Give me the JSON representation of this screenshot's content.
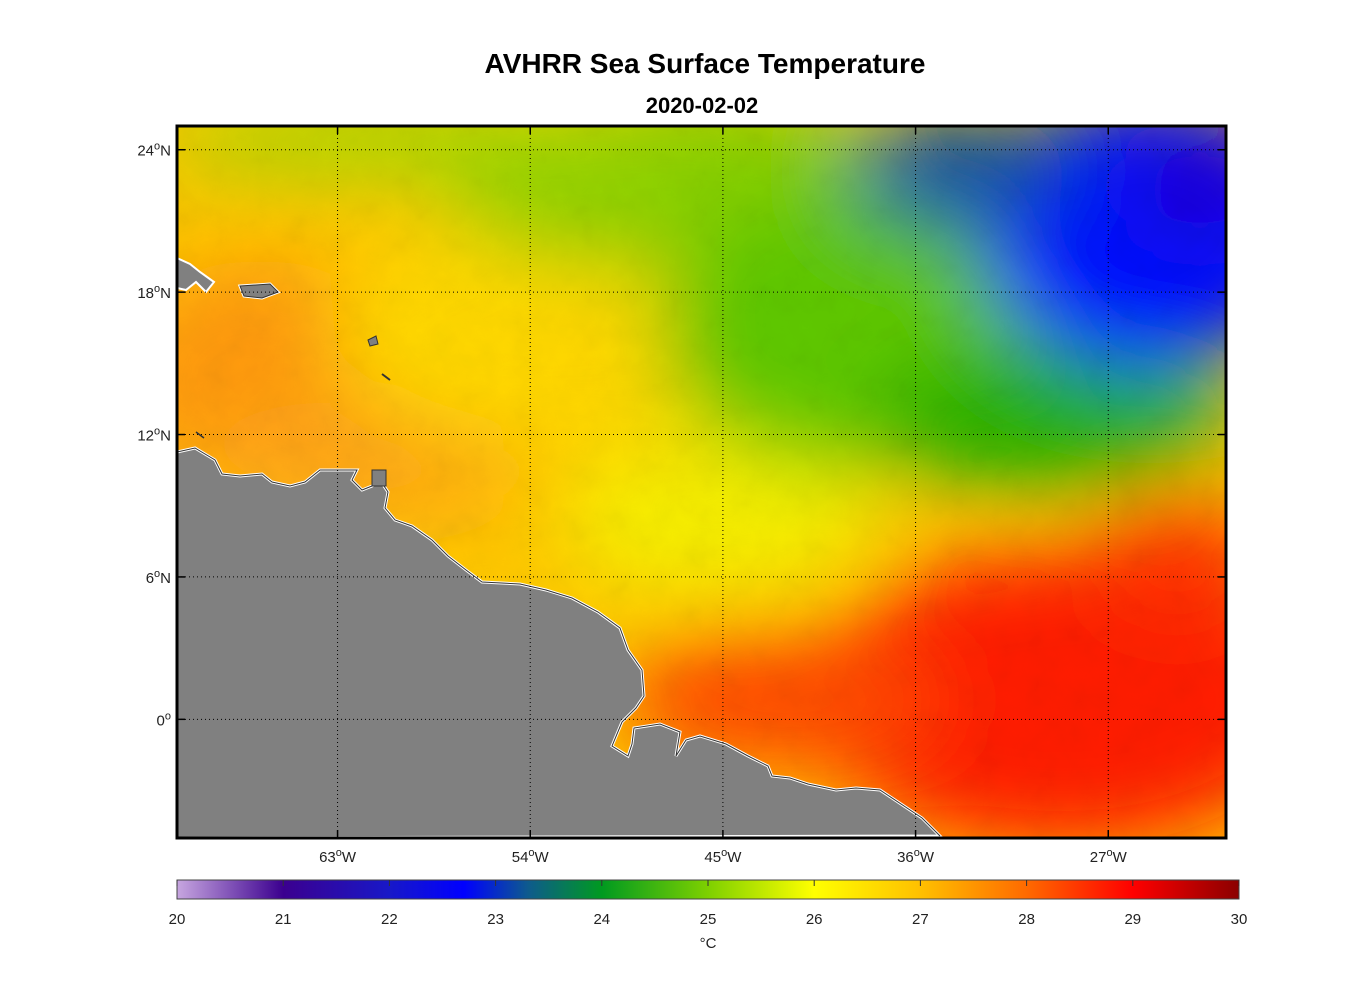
{
  "title": "AVHRR Sea Surface Temperature",
  "date": "2020-02-02",
  "map": {
    "lon_range": [
      -70.5,
      -21.5
    ],
    "lat_range": [
      -5,
      25
    ],
    "lon_ticks": [
      {
        "value": -63,
        "label": "63",
        "hemi": "W"
      },
      {
        "value": -54,
        "label": "54",
        "hemi": "W"
      },
      {
        "value": -45,
        "label": "45",
        "hemi": "W"
      },
      {
        "value": -36,
        "label": "36",
        "hemi": "W"
      },
      {
        "value": -27,
        "label": "27",
        "hemi": "W"
      }
    ],
    "lat_ticks": [
      {
        "value": 24,
        "label": "24",
        "hemi": "N"
      },
      {
        "value": 18,
        "label": "18",
        "hemi": "N"
      },
      {
        "value": 12,
        "label": "12",
        "hemi": "N"
      },
      {
        "value": 6,
        "label": "6",
        "hemi": "N"
      },
      {
        "value": 0,
        "label": "0",
        "hemi": ""
      }
    ],
    "land_color": "#808080",
    "grid": "dotted"
  },
  "colorbar": {
    "min": 20,
    "max": 30,
    "ticks": [
      "20",
      "21",
      "22",
      "23",
      "24",
      "25",
      "26",
      "27",
      "28",
      "29",
      "30"
    ],
    "unit": "°C",
    "colors": [
      "#b88fd0",
      "#3a0090",
      "#0000ff",
      "#0b5aa0",
      "#00a000",
      "#70d000",
      "#ffff00",
      "#ffb000",
      "#ff6600",
      "#ff0000",
      "#8b0000"
    ]
  }
}
